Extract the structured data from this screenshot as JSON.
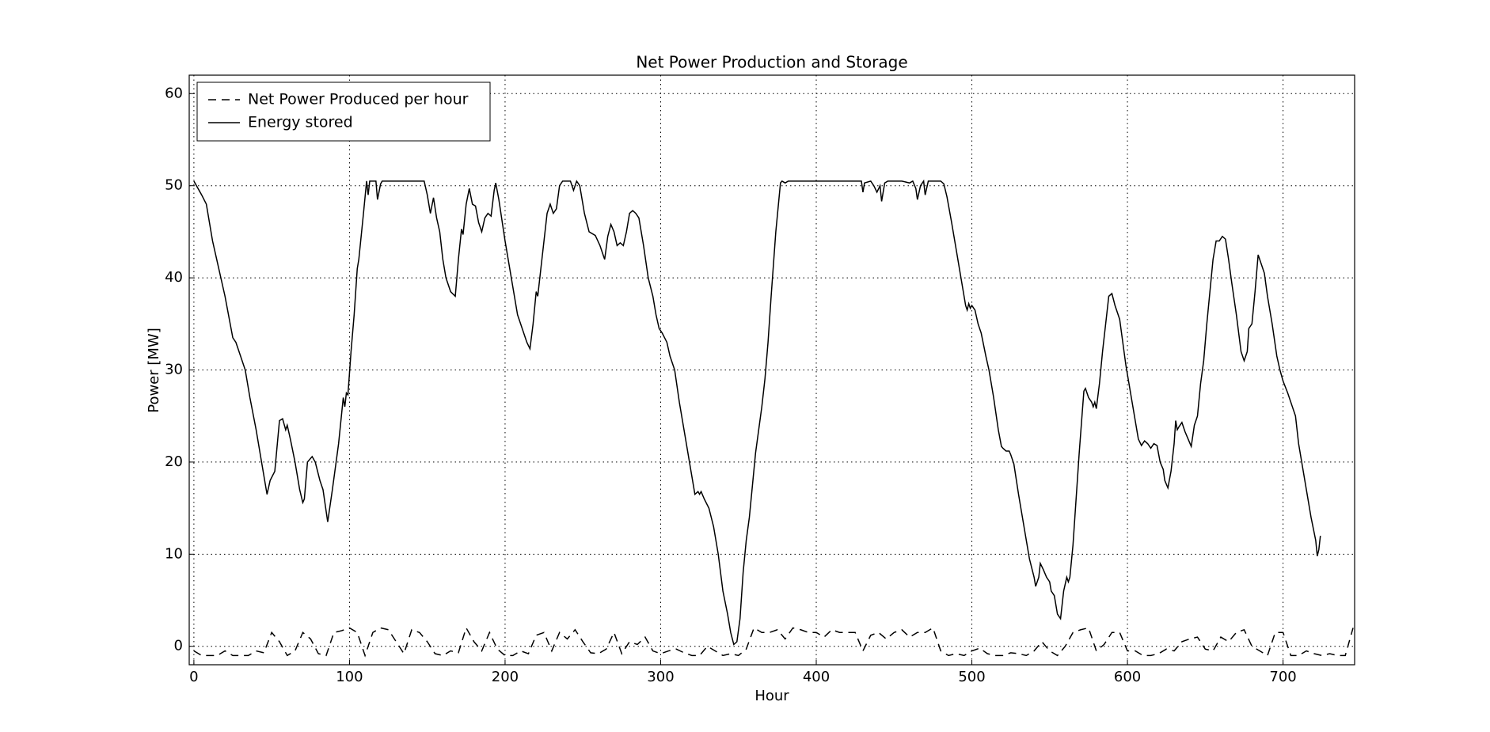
{
  "chart_data": {
    "type": "line",
    "title": "Net Power Production and Storage",
    "x_label": "Hour",
    "y_label": "Power [MW]",
    "xlim": [
      -3,
      746
    ],
    "ylim": [
      -2,
      62
    ],
    "xticks": [
      0,
      100,
      200,
      300,
      400,
      500,
      600,
      700
    ],
    "yticks": [
      0,
      10,
      20,
      30,
      40,
      50,
      60
    ],
    "grid": true,
    "legend": "upper left",
    "series": [
      {
        "name": "Net Power Produced per hour",
        "color": "#000000",
        "linestyle": "dashed",
        "x": [
          0,
          5,
          10,
          15,
          20,
          25,
          30,
          35,
          40,
          45,
          50,
          55,
          60,
          65,
          70,
          75,
          80,
          85,
          90,
          95,
          100,
          105,
          110,
          115,
          120,
          125,
          130,
          135,
          140,
          145,
          150,
          155,
          160,
          165,
          170,
          175,
          180,
          185,
          190,
          195,
          200,
          205,
          210,
          215,
          220,
          225,
          230,
          235,
          240,
          245,
          250,
          255,
          260,
          265,
          270,
          275,
          280,
          285,
          290,
          295,
          300,
          305,
          310,
          315,
          320,
          325,
          330,
          335,
          340,
          345,
          350,
          355,
          360,
          365,
          370,
          375,
          380,
          385,
          390,
          395,
          400,
          405,
          410,
          415,
          420,
          425,
          430,
          435,
          440,
          445,
          450,
          455,
          460,
          465,
          470,
          475,
          480,
          485,
          490,
          495,
          500,
          505,
          510,
          515,
          520,
          525,
          530,
          535,
          540,
          545,
          550,
          555,
          560,
          565,
          570,
          575,
          580,
          585,
          590,
          595,
          600,
          605,
          610,
          615,
          620,
          625,
          630,
          635,
          640,
          645,
          650,
          655,
          660,
          665,
          670,
          675,
          680,
          685,
          690,
          695,
          700,
          705,
          710,
          715,
          720,
          725,
          730,
          735,
          740,
          745
        ],
        "values": [
          -0.5,
          -1,
          -1,
          -1,
          -0.5,
          -1,
          -1,
          -1,
          -0.5,
          -0.7,
          1.5,
          0.5,
          -1,
          -0.5,
          1.5,
          0.8,
          -0.8,
          -1,
          1.5,
          1.7,
          2,
          1.5,
          -1,
          1.5,
          2,
          1.8,
          0.5,
          -0.8,
          1.8,
          1.5,
          0.5,
          -0.8,
          -1,
          -0.5,
          -0.7,
          2,
          0.5,
          -0.5,
          1.5,
          -0.3,
          -1,
          -1,
          -0.5,
          -0.8,
          1.2,
          1.5,
          -0.5,
          1.5,
          0.8,
          1.8,
          0.5,
          -0.7,
          -0.8,
          -0.3,
          1.5,
          -0.8,
          0.5,
          0.2,
          1,
          -0.5,
          -0.8,
          -0.5,
          -0.3,
          -0.7,
          -1,
          -1,
          0,
          -0.5,
          -1,
          -0.8,
          -1,
          -0.3,
          2,
          1.5,
          1.5,
          1.8,
          0.8,
          2,
          1.8,
          1.5,
          1.5,
          1,
          1.8,
          1.5,
          1.5,
          1.5,
          -0.5,
          1.2,
          1.5,
          0.8,
          1.5,
          1.8,
          1,
          1.5,
          1.5,
          2,
          -0.5,
          -1,
          -0.8,
          -1,
          -0.5,
          -0.2,
          -0.8,
          -1,
          -1,
          -0.7,
          -0.8,
          -1,
          -0.5,
          0.5,
          -0.5,
          -1,
          0,
          1.5,
          1.8,
          2,
          -0.5,
          0.2,
          1.5,
          1.5,
          -0.5,
          -0.5,
          -1,
          -1,
          -0.8,
          -0.3,
          -0.5,
          0.5,
          0.8,
          1,
          -0.3,
          -0.5,
          1,
          0.5,
          1.5,
          1.8,
          0,
          -0.5,
          -1,
          1.5,
          1.5,
          -1,
          -1,
          -0.5,
          -0.8,
          -1,
          -0.8,
          -1,
          -1,
          2
        ]
      },
      {
        "name": "Energy stored",
        "color": "#000000",
        "linestyle": "solid",
        "x": [
          0,
          5,
          8,
          12,
          16,
          20,
          25,
          27,
          30,
          33,
          36,
          40,
          44,
          47,
          49,
          52,
          55,
          57,
          59,
          60,
          62,
          65,
          68,
          70,
          71,
          73,
          76,
          78,
          81,
          83,
          86,
          89,
          93,
          96,
          97,
          98,
          99,
          101,
          103,
          105,
          106,
          109,
          111,
          112,
          113,
          117,
          118,
          120,
          121,
          130,
          145,
          148,
          150,
          152,
          154,
          156,
          158,
          160,
          162,
          165,
          168,
          170,
          172,
          173,
          175,
          177,
          179,
          181,
          183,
          185,
          187,
          189,
          191,
          193,
          194,
          196,
          200,
          205,
          208,
          211,
          214,
          216,
          218,
          220,
          221,
          223,
          225,
          227,
          229,
          231,
          233,
          235,
          237,
          242,
          244,
          246,
          248,
          251,
          254,
          258,
          261,
          264,
          266,
          268,
          270,
          272,
          274,
          276,
          278,
          280,
          282,
          284,
          286,
          289,
          292,
          295,
          297,
          299,
          301,
          304,
          306,
          309,
          312,
          316,
          320,
          322,
          324,
          325,
          326,
          328,
          331,
          334,
          337,
          340,
          343,
          345,
          347,
          349,
          351,
          353,
          355,
          357,
          359,
          361,
          363,
          365,
          367,
          369,
          371,
          374,
          377,
          378,
          380,
          382,
          400,
          410,
          429,
          430,
          431,
          435,
          437,
          439,
          441,
          442,
          444,
          446,
          455,
          460,
          462,
          464,
          465,
          467,
          469,
          470,
          472,
          480,
          482,
          484,
          487,
          490,
          493,
          496,
          497,
          498,
          499,
          500,
          502,
          504,
          506,
          509,
          511,
          514,
          517,
          519,
          520,
          522,
          524,
          525,
          527,
          530,
          534,
          537,
          540,
          541,
          543,
          544,
          546,
          548,
          550,
          551,
          553,
          555,
          557,
          559,
          561,
          562,
          563,
          565,
          567,
          569,
          571,
          572,
          573,
          575,
          577,
          578,
          579,
          580,
          582,
          584,
          586,
          588,
          590,
          592,
          595,
          597,
          599,
          602,
          605,
          607,
          609,
          611,
          613,
          615,
          617,
          619,
          621,
          623,
          624,
          626,
          628,
          630,
          631,
          632,
          633,
          635,
          637,
          639,
          641,
          643,
          645,
          647,
          649,
          651,
          653,
          655,
          657,
          659,
          661,
          663,
          665,
          667,
          670,
          673,
          675,
          677,
          678,
          680,
          682,
          684,
          686,
          688,
          690,
          693,
          696,
          698,
          700,
          703,
          706,
          708,
          710,
          714,
          718,
          721,
          722,
          723,
          724
        ],
        "values": [
          50.5,
          49,
          48,
          44,
          41,
          38,
          33.5,
          33,
          31.5,
          30,
          27,
          23.5,
          19.5,
          16.5,
          18,
          19,
          24.5,
          24.7,
          23.5,
          24,
          22.5,
          20,
          17,
          15.6,
          16,
          20,
          20.6,
          20,
          18,
          17,
          13.5,
          17,
          22,
          27,
          26,
          27.5,
          27.3,
          32,
          36,
          41,
          42,
          47,
          50.5,
          49,
          50.5,
          50.5,
          48.5,
          50.2,
          50.5,
          50.5,
          50.5,
          50.5,
          49,
          47,
          48.7,
          46.5,
          45,
          42,
          40,
          38.5,
          38,
          42,
          45.3,
          44.7,
          48,
          49.7,
          48,
          47.8,
          46,
          45,
          46.5,
          47,
          46.7,
          49.5,
          50.3,
          48.5,
          44,
          39,
          36,
          34.5,
          33,
          32.3,
          35,
          38.5,
          38,
          41,
          44,
          47,
          48,
          47,
          47.5,
          50,
          50.5,
          50.5,
          49.5,
          50.5,
          50,
          47,
          45,
          44.6,
          43.5,
          42,
          44.5,
          45.8,
          45,
          43.5,
          43.8,
          43.5,
          45,
          47,
          47.3,
          47,
          46.5,
          43.5,
          40,
          38,
          36,
          34.5,
          34,
          33,
          31.5,
          30,
          26.5,
          22.5,
          18.5,
          16.5,
          16.8,
          16.5,
          16.8,
          16,
          15,
          13,
          10,
          6,
          3.5,
          1.5,
          0.2,
          0.5,
          3,
          8,
          11.5,
          14,
          17.5,
          21,
          23.5,
          26,
          29,
          33,
          38,
          45,
          50.3,
          50.5,
          50.3,
          50.5,
          50.5,
          50.5,
          50.5,
          49.3,
          50.3,
          50.5,
          50,
          49.3,
          50,
          48.3,
          50.3,
          50.5,
          50.5,
          50.3,
          50.5,
          49.7,
          48.5,
          50,
          50.5,
          49,
          50.5,
          50.5,
          50.2,
          48.8,
          46,
          43,
          40,
          37,
          36.5,
          37.2,
          36.7,
          37,
          36.5,
          35,
          34,
          31.5,
          30,
          27,
          23.5,
          21.7,
          21.5,
          21.2,
          21.2,
          20.8,
          19.8,
          16.5,
          12.5,
          9.5,
          7.5,
          6.5,
          7.5,
          9,
          8.3,
          7.5,
          7,
          6,
          5.5,
          3.5,
          3,
          6,
          7.5,
          7,
          7.5,
          11,
          16,
          21,
          25.5,
          27.7,
          28,
          27,
          26.5,
          26,
          26.5,
          25.8,
          28.5,
          32,
          35,
          38,
          38.3,
          37,
          35.5,
          33,
          30.5,
          27.5,
          24.5,
          22.5,
          21.8,
          22.3,
          22,
          21.5,
          22,
          21.8,
          20,
          19.2,
          18,
          17.2,
          19,
          22,
          24.5,
          23.5,
          23.8,
          24.3,
          23.3,
          22.5,
          21.7,
          24,
          25,
          28.5,
          31,
          35,
          38.5,
          42,
          44,
          44,
          44.5,
          44.2,
          42,
          39.5,
          36,
          32,
          31,
          32,
          34.5,
          35,
          38.5,
          42.5,
          41.5,
          40.5,
          38,
          35,
          31.5,
          30,
          28.8,
          27.5,
          26,
          25,
          22,
          18,
          14,
          11.5,
          9.8,
          10.5,
          12
        ]
      }
    ]
  }
}
